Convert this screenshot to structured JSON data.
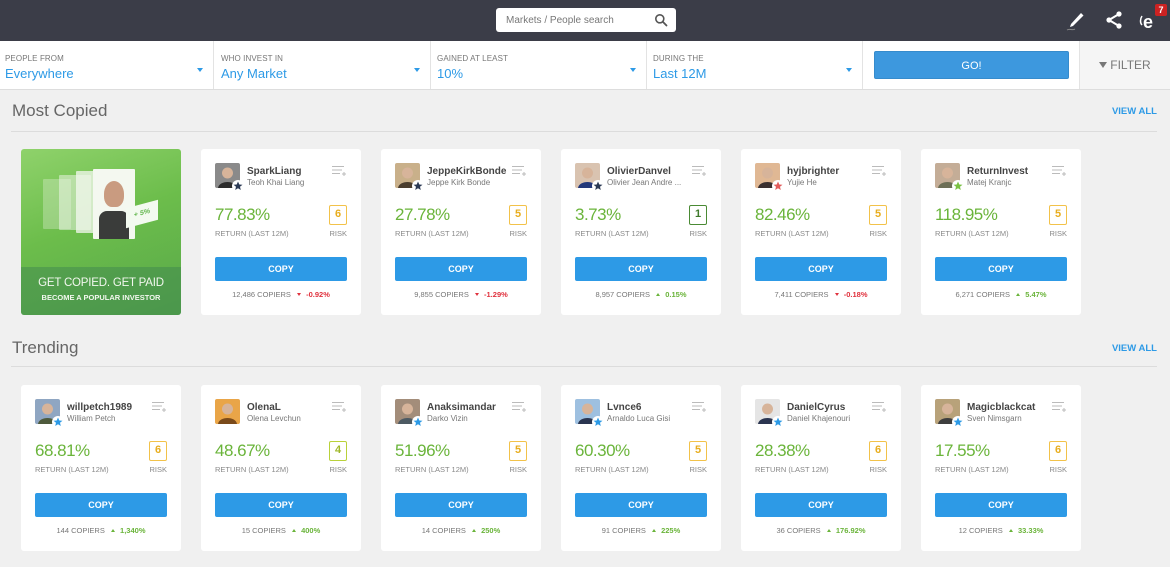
{
  "topbar": {
    "search_placeholder": "Markets / People search",
    "icons": [
      "pencil-icon",
      "share-icon",
      "notifications-icon"
    ],
    "notification_count": "7"
  },
  "filters": {
    "people_from": {
      "label": "PEOPLE FROM",
      "value": "Everywhere"
    },
    "who_invest_in": {
      "label": "WHO INVEST IN",
      "value": "Any Market"
    },
    "gained_at_least": {
      "label": "GAINED AT LEAST",
      "value": "10%"
    },
    "during_the": {
      "label": "DURING THE",
      "value": "Last 12M"
    },
    "go_label": "GO!",
    "filter_label": "FILTER"
  },
  "promo": {
    "title": "GET COPIED. GET PAID",
    "subtitle": "BECOME A POPULAR INVESTOR",
    "tag": "+ 5%"
  },
  "labels": {
    "return": "RETURN (LAST 12M)",
    "risk": "RISK",
    "copy": "COPY",
    "copiers_suffix": "COPIERS"
  },
  "sections": [
    {
      "title": "Most Copied",
      "view_all": "VIEW ALL",
      "cards": [
        {
          "username": "SparkLiang",
          "fullname": "Teoh Khai Liang",
          "return": "77.83%",
          "risk": "6",
          "copiers": "12,486",
          "change": "-0.92%",
          "direction": "down",
          "star": "#2b3a55",
          "avatar": [
            "#8a8a8a",
            "#2c2c2c"
          ]
        },
        {
          "username": "JeppeKirkBonde",
          "fullname": "Jeppe Kirk Bonde",
          "return": "27.78%",
          "risk": "5",
          "copiers": "9,855",
          "change": "-1.29%",
          "direction": "down",
          "star": "#2b3a55",
          "avatar": [
            "#c9b08a",
            "#4a3d2e"
          ]
        },
        {
          "username": "OlivierDanvel",
          "fullname": "Olivier Jean Andre ...",
          "return": "3.73%",
          "risk": "1",
          "copiers": "8,957",
          "change": "0.15%",
          "direction": "up",
          "star": "#2b3a55",
          "avatar": [
            "#d9c3b0",
            "#23387a"
          ]
        },
        {
          "username": "hyjbrighter",
          "fullname": "Yujie He",
          "return": "82.46%",
          "risk": "5",
          "copiers": "7,411",
          "change": "-0.18%",
          "direction": "down",
          "star": "#e25c5c",
          "avatar": [
            "#e0b894",
            "#3a3030"
          ]
        },
        {
          "username": "ReturnInvest",
          "fullname": "Matej Kranjc",
          "return": "118.95%",
          "risk": "5",
          "copiers": "6,271",
          "change": "5.47%",
          "direction": "up",
          "star": "#7ac143",
          "avatar": [
            "#c4ad97",
            "#6d6f56"
          ]
        }
      ]
    },
    {
      "title": "Trending",
      "view_all": "VIEW ALL",
      "cards": [
        {
          "username": "willpetch1989",
          "fullname": "William Petch",
          "return": "68.81%",
          "risk": "6",
          "copiers": "144",
          "change": "1,340%",
          "direction": "up",
          "star": "#2d9ae6",
          "avatar": [
            "#8fa6c2",
            "#4e5a3c"
          ]
        },
        {
          "username": "OlenaL",
          "fullname": "Olena Levchun",
          "return": "48.67%",
          "risk": "4",
          "copiers": "15",
          "change": "400%",
          "direction": "up",
          "star": "",
          "avatar": [
            "#e9a548",
            "#7a4a1a"
          ]
        },
        {
          "username": "Anaksimandar",
          "fullname": "Darko Vizin",
          "return": "51.96%",
          "risk": "5",
          "copiers": "14",
          "change": "250%",
          "direction": "up",
          "star": "#2d9ae6",
          "avatar": [
            "#a38d7a",
            "#4d5a63"
          ]
        },
        {
          "username": "Lvnce6",
          "fullname": "Arnaldo Luca Gisi",
          "return": "60.30%",
          "risk": "5",
          "copiers": "91",
          "change": "225%",
          "direction": "up",
          "star": "#2d9ae6",
          "avatar": [
            "#9ec0e0",
            "#2a3550"
          ]
        },
        {
          "username": "DanielCyrus",
          "fullname": "Daniel Khajenouri",
          "return": "28.38%",
          "risk": "6",
          "copiers": "36",
          "change": "176.92%",
          "direction": "up",
          "star": "#2d9ae6",
          "avatar": [
            "#e5e5e5",
            "#2b3550"
          ]
        },
        {
          "username": "Magicblackcat",
          "fullname": "Sven Nimsgarn",
          "return": "17.55%",
          "risk": "6",
          "copiers": "12",
          "change": "33.33%",
          "direction": "up",
          "star": "#2d9ae6",
          "avatar": [
            "#b8a27a",
            "#3e3e3e"
          ]
        }
      ]
    }
  ],
  "colors": {
    "topbar": "#3b3d48",
    "accent_blue": "#2d9ae6",
    "positive_green": "#6ab43a",
    "negative_red": "#e0313d",
    "risk_yellow": "#f2c24a"
  }
}
